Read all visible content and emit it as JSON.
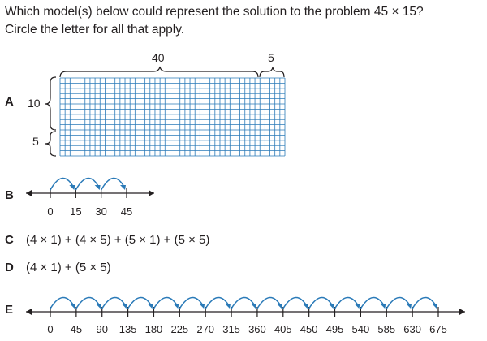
{
  "question": {
    "line1": "Which model(s) below could represent the solution to the problem 45 × 15?",
    "line2": "Circle the letter for all that apply."
  },
  "colors": {
    "ink": "#231f20",
    "grid": "#2a7ab8",
    "arc": "#2a7ab8"
  },
  "option_a": {
    "letter": "A",
    "top_labels": [
      "40",
      "5"
    ],
    "side_labels": [
      "10",
      "5"
    ],
    "grid_cols": 45,
    "grid_rows": 15
  },
  "option_b": {
    "letter": "B",
    "ticks": [
      "0",
      "15",
      "30",
      "45"
    ],
    "jumps": 3
  },
  "option_c": {
    "letter": "C",
    "text": "(4 × 1) + (4 × 5) + (5 × 1) + (5 × 5)"
  },
  "option_d": {
    "letter": "D",
    "text": "(4 × 1) + (5 × 5)"
  },
  "option_e": {
    "letter": "E",
    "ticks": [
      "0",
      "45",
      "90",
      "135",
      "180",
      "225",
      "270",
      "315",
      "360",
      "405",
      "450",
      "495",
      "540",
      "585",
      "630",
      "675"
    ],
    "jumps": 15
  }
}
